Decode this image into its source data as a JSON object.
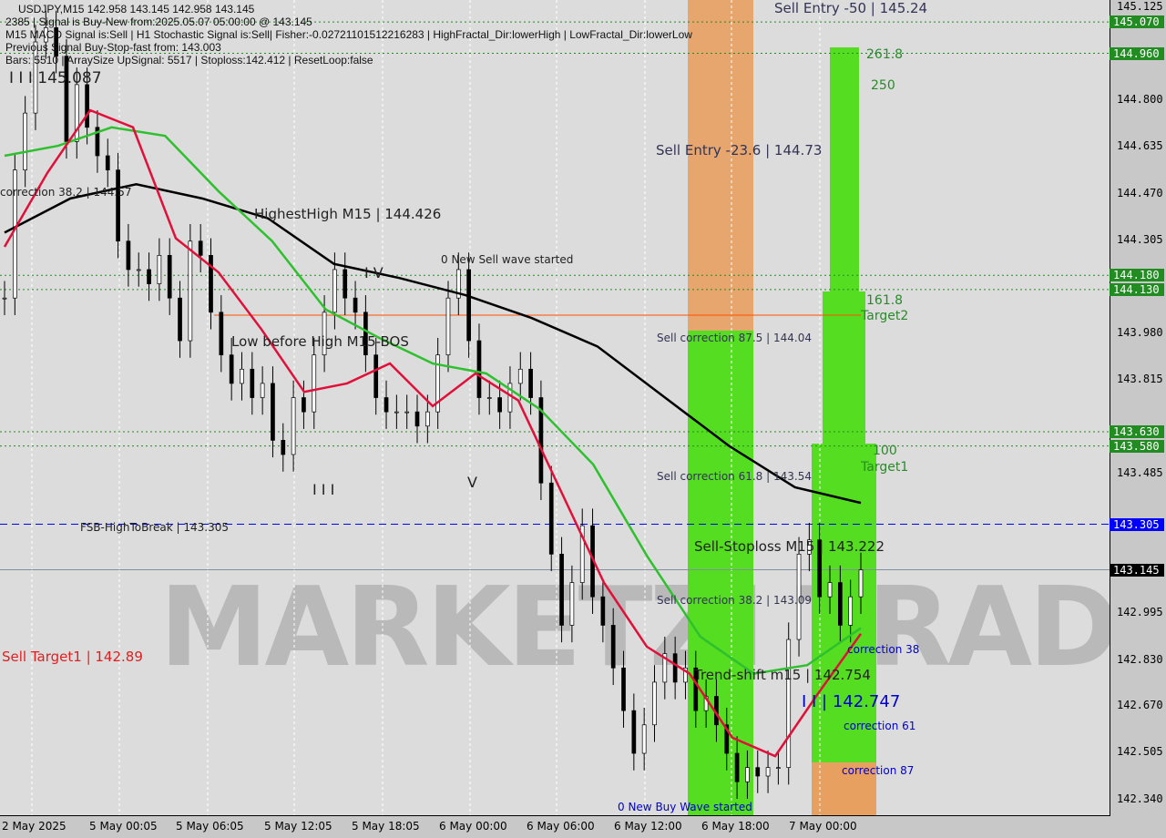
{
  "header": {
    "symbol_line": "USDJPY,M15  142.958 143.145 142.958 143.145",
    "signal_line": "2385 | Signal is Buy-New from:2025.05.07 05:00:00 @ 143.145",
    "indicators_line": "M15 MACD Signal is:Sell | H1 Stochastic Signal is:Sell| Fisher:-0.02721101512216283 | HighFractal_Dir:lowerHigh | LowFractal_Dir:lowerLow",
    "previous_line": "Previous Signal Buy-Stop-fast from: 143.003",
    "bars_line": "Bars: 5510 | ArraySize UpSignal: 5517 | Stoploss:142.412 | ResetLoop:false"
  },
  "watermark": "MARKETZI TRADE",
  "colors": {
    "bg": "#dcdcdc",
    "ma_black": "#000000",
    "ma_green": "#2ec02e",
    "ma_red": "#e0103a",
    "zone_green": "#55dd22",
    "zone_orange": "#e8a060",
    "level_green": "#228b22",
    "level_blue": "#0000ff"
  },
  "annotations": {
    "sell_entry_50": "Sell Entry -50 | 145.24",
    "sell_entry_236": "Sell Entry -23.6 | 144.73",
    "fib_2618": "261.8",
    "fib_250": "250",
    "fib_1618": "161.8",
    "target2": "Target2",
    "fib_100": "100",
    "target1": "Target1",
    "highest_high": "HighestHigh   M15 | 144.426",
    "new_sell_wave": "0 New Sell wave started",
    "low_before_high": "Low before High   M15-BOS",
    "sell_corr_875": "Sell correction 87.5 | 144.04",
    "sell_corr_618": "Sell correction 61.8 | 143.54",
    "sell_corr_382": "Sell correction 38.2 | 143.09",
    "fsb": "FSB-HighToBreak | 143.305",
    "sell_stoploss": "Sell-Stoploss M15 | 143.222",
    "trend_shift": "Trend-shift m15 | 142.754",
    "level_142747": "I I | 142.747",
    "corr38": "correction 38",
    "corr61": "correction 61",
    "corr87": "correction 87",
    "new_buy_wave": "0 New Buy Wave started",
    "sell_target": "Sell Target1 | 142.89",
    "corr_left": "correction 38.2 | 144.57",
    "top_left_level": "I I I 145.087",
    "wave_iv": "I V",
    "wave_iii": "I I I",
    "wave_v": "V"
  },
  "chart_data": {
    "type": "candlestick-line",
    "symbol": "USDJPY",
    "timeframe": "M15",
    "ylim": [
      142.34,
      145.125
    ],
    "y_ticks": [
      "145.125",
      "144.800",
      "144.635",
      "144.470",
      "144.305",
      "143.980",
      "143.815",
      "143.485",
      "142.995",
      "142.830",
      "142.670",
      "142.505",
      "142.340"
    ],
    "x_ticks": [
      "2 May 2025",
      "5 May 00:05",
      "5 May 06:05",
      "5 May 12:05",
      "5 May 18:05",
      "6 May 00:00",
      "6 May 06:00",
      "6 May 12:00",
      "6 May 18:00",
      "7 May 00:00"
    ],
    "price_tags": [
      {
        "v": "145.070",
        "c": "#228b22"
      },
      {
        "v": "144.960",
        "c": "#228b22"
      },
      {
        "v": "144.180",
        "c": "#228b22"
      },
      {
        "v": "144.130",
        "c": "#228b22"
      },
      {
        "v": "143.630",
        "c": "#228b22"
      },
      {
        "v": "143.580",
        "c": "#228b22"
      },
      {
        "v": "143.305",
        "c": "#0000ff"
      },
      {
        "v": "143.145",
        "c": "#000000"
      }
    ],
    "close": [
      144.1,
      144.55,
      144.75,
      145.0,
      145.05,
      144.95,
      144.65,
      144.85,
      144.7,
      144.6,
      144.55,
      144.3,
      144.2,
      144.2,
      144.15,
      144.25,
      144.1,
      143.95,
      144.3,
      144.25,
      144.05,
      143.9,
      143.8,
      143.85,
      143.75,
      143.8,
      143.6,
      143.55,
      143.75,
      143.7,
      143.9,
      144.05,
      144.2,
      144.1,
      144.05,
      143.9,
      143.75,
      143.7,
      143.7,
      143.7,
      143.65,
      143.7,
      143.9,
      144.1,
      144.2,
      143.95,
      143.75,
      143.75,
      143.7,
      143.8,
      143.85,
      143.75,
      143.45,
      143.2,
      142.95,
      143.1,
      143.3,
      143.05,
      142.95,
      142.8,
      142.65,
      142.5,
      142.6,
      142.75,
      142.85,
      142.75,
      142.8,
      142.65,
      142.7,
      142.6,
      142.5,
      142.4,
      142.45,
      142.42,
      142.45,
      142.45,
      142.9,
      143.2,
      143.25,
      143.05,
      143.1,
      142.95,
      143.05,
      143.145
    ],
    "ma_black": [
      144.33,
      144.45,
      144.5,
      144.45,
      144.38,
      144.22,
      144.17,
      144.11,
      144.03,
      143.93,
      143.755,
      143.58,
      143.435,
      143.38
    ],
    "ma_green": [
      144.6,
      144.635,
      144.7,
      144.67,
      144.475,
      144.3,
      144.06,
      143.96,
      143.87,
      143.835,
      143.71,
      143.515,
      143.195,
      142.91,
      142.78,
      142.81,
      142.94
    ],
    "ma_red": [
      144.28,
      144.54,
      144.76,
      144.7,
      144.31,
      144.19,
      143.99,
      143.77,
      143.8,
      143.87,
      143.72,
      143.835,
      143.74,
      143.42,
      143.1,
      142.875,
      142.78,
      142.555,
      142.49,
      142.71,
      142.92
    ],
    "h_levels": [
      {
        "price": 145.07,
        "style": "green-dotted"
      },
      {
        "price": 144.96,
        "style": "green-dotted"
      },
      {
        "price": 144.18,
        "style": "green-dotted"
      },
      {
        "price": 144.13,
        "style": "green-dotted"
      },
      {
        "price": 143.63,
        "style": "green-dotted"
      },
      {
        "price": 143.58,
        "style": "green-dotted"
      },
      {
        "price": 143.305,
        "style": "blue-dashed"
      },
      {
        "price": 143.145,
        "style": "grey-solid"
      },
      {
        "price": 144.04,
        "style": "orange-solid"
      }
    ]
  }
}
